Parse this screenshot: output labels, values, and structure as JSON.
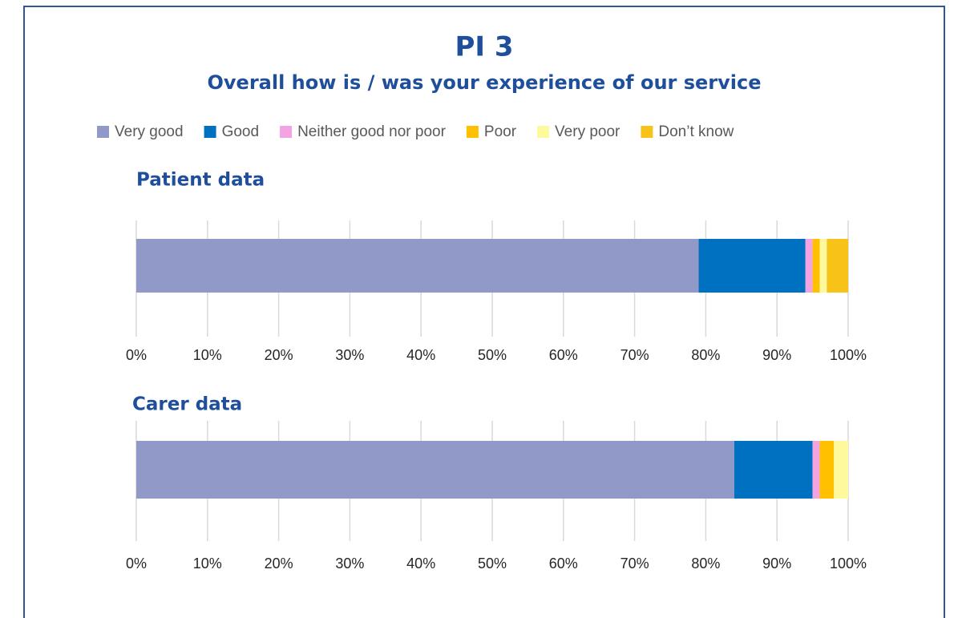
{
  "title": "PI 3",
  "subtitle": "Overall how is / was your experience of our service",
  "chart_data": {
    "type": "bar",
    "orientation": "horizontal",
    "stacked": true,
    "grid": true,
    "legend": "top",
    "categories": [
      "Patient data",
      "Carer data"
    ],
    "series": [
      {
        "name": "Very good",
        "color": "#9199c8",
        "values": [
          79,
          84
        ]
      },
      {
        "name": "Good",
        "color": "#0070c0",
        "values": [
          15,
          11
        ]
      },
      {
        "name": "Neither good nor poor",
        "color": "#f4a3e2",
        "values": [
          1,
          1
        ]
      },
      {
        "name": "Poor",
        "color": "#ffc000",
        "values": [
          1,
          2
        ]
      },
      {
        "name": "Very poor",
        "color": "#fdf99c",
        "values": [
          1,
          2
        ]
      },
      {
        "name": "Don’t know",
        "color": "#f7c318",
        "values": [
          3,
          0
        ]
      }
    ],
    "xlim": [
      0,
      100
    ],
    "xticks": [
      {
        "value": 0,
        "label": "0%"
      },
      {
        "value": 10,
        "label": "10%"
      },
      {
        "value": 20,
        "label": "20%"
      },
      {
        "value": 30,
        "label": "30%"
      },
      {
        "value": 40,
        "label": "40%"
      },
      {
        "value": 50,
        "label": "50%"
      },
      {
        "value": 60,
        "label": "60%"
      },
      {
        "value": 70,
        "label": "70%"
      },
      {
        "value": 80,
        "label": "80%"
      },
      {
        "value": 90,
        "label": "90%"
      },
      {
        "value": 100,
        "label": "100%"
      }
    ]
  }
}
